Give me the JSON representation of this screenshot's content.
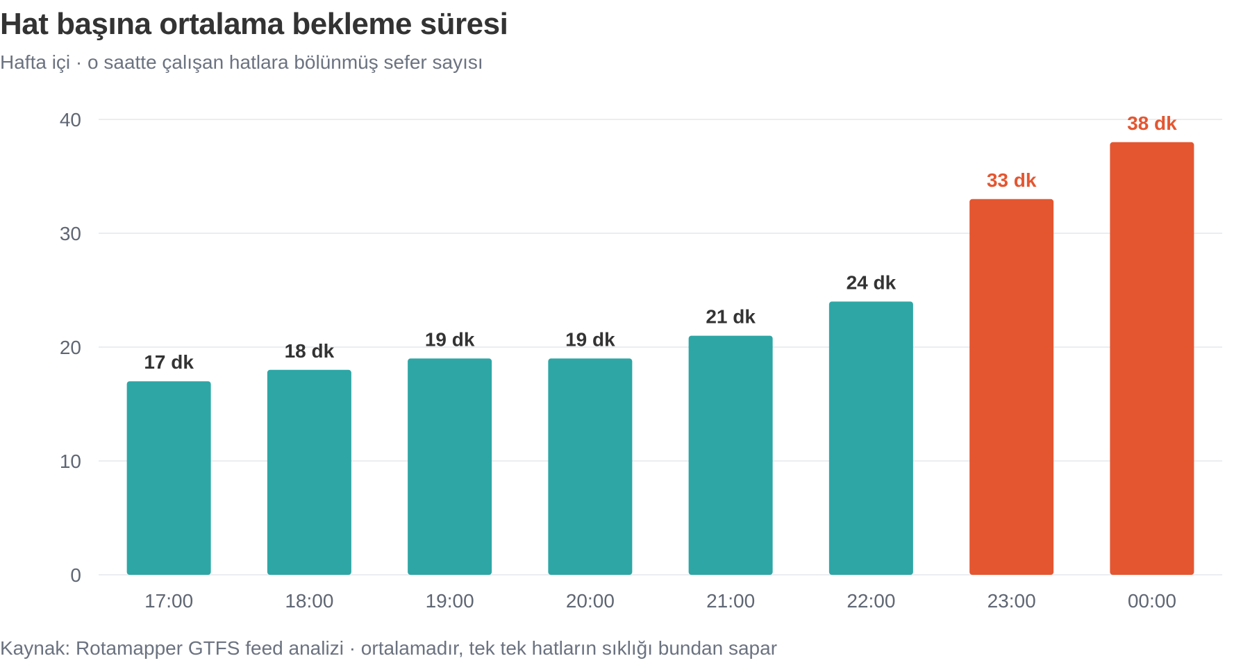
{
  "chart": {
    "title": "Hat başına ortalama bekleme süresi",
    "subtitle": "Hafta içi · o saatte çalışan hatlara bölünmüş sefer sayısı",
    "source": "Kaynak: Rotamapper GTFS feed analizi · ortalamadır, tek tek hatların sıklığı bundan sapar"
  },
  "colors": {
    "normal": "#2ea6a6",
    "highlight": "#e45630",
    "label_normal": "#333333",
    "label_highlight": "#e45630",
    "grid": "#e5e7eb",
    "tick": "#5f6673"
  },
  "chart_data": {
    "type": "bar",
    "title": "Hat başına ortalama bekleme süresi",
    "subtitle": "Hafta içi · o saatte çalışan hatlara bölünmüş sefer sayısı",
    "xlabel": "",
    "ylabel": "",
    "ylim": [
      0,
      40
    ],
    "yticks": [
      0,
      10,
      20,
      30,
      40
    ],
    "grid": true,
    "legend": "none",
    "categories": [
      "17:00",
      "18:00",
      "19:00",
      "20:00",
      "21:00",
      "22:00",
      "23:00",
      "00:00"
    ],
    "values": [
      17,
      18,
      19,
      19,
      21,
      24,
      33,
      38
    ],
    "data_labels": [
      "17 dk",
      "18 dk",
      "19 dk",
      "19 dk",
      "21 dk",
      "24 dk",
      "33 dk",
      "38 dk"
    ],
    "highlighted": [
      false,
      false,
      false,
      false,
      false,
      false,
      true,
      true
    ]
  }
}
